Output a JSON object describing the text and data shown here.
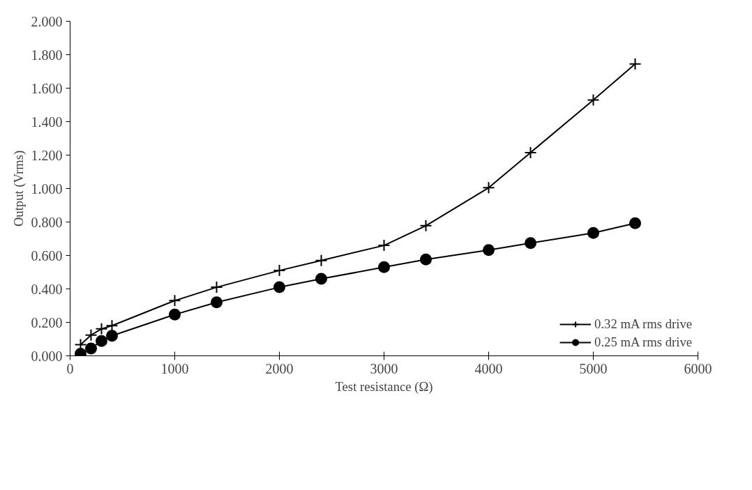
{
  "chart_data": {
    "type": "line",
    "xlabel": "Test resistance (Ω)",
    "ylabel": "Output (Vrms)",
    "xlim": [
      0,
      6000
    ],
    "xticks": [
      0,
      1000,
      2000,
      3000,
      4000,
      5000,
      6000
    ],
    "ylim": [
      0,
      2
    ],
    "yticks": [
      {
        "value": 0,
        "label": "0.000"
      },
      {
        "value": 0.2,
        "label": "0.200"
      },
      {
        "value": 0.4,
        "label": "0.400"
      },
      {
        "value": 0.6,
        "label": "0.600"
      },
      {
        "value": 0.8,
        "label": "0.800"
      },
      {
        "value": 1,
        "label": "1.000"
      },
      {
        "value": 1.2,
        "label": "1.200"
      },
      {
        "value": 1.4,
        "label": "1.400"
      },
      {
        "value": 1.6,
        "label": "1.600"
      },
      {
        "value": 1.8,
        "label": "1.800"
      },
      {
        "value": 2,
        "label": "2.000"
      }
    ],
    "x": [
      100,
      200,
      300,
      400,
      1000,
      1400,
      2000,
      2400,
      3000,
      3400,
      4000,
      4400,
      5000,
      5400
    ],
    "grid": false,
    "legend": "bottom right",
    "line_style": "solid",
    "series": [
      {
        "name": "0.32 mA rms drive",
        "color": "#000000",
        "marker": "cross",
        "values": [
          0.067,
          0.124,
          0.161,
          0.18,
          0.33,
          0.41,
          0.51,
          0.57,
          0.66,
          0.778,
          1.005,
          1.215,
          1.529,
          1.745
        ]
      },
      {
        "name": "0.25 mA rms drive",
        "color": "#000000",
        "marker": "circle",
        "values": [
          0.012,
          0.044,
          0.089,
          0.12,
          0.247,
          0.32,
          0.41,
          0.46,
          0.53,
          0.576,
          0.632,
          0.674,
          0.734,
          0.793
        ]
      }
    ]
  }
}
